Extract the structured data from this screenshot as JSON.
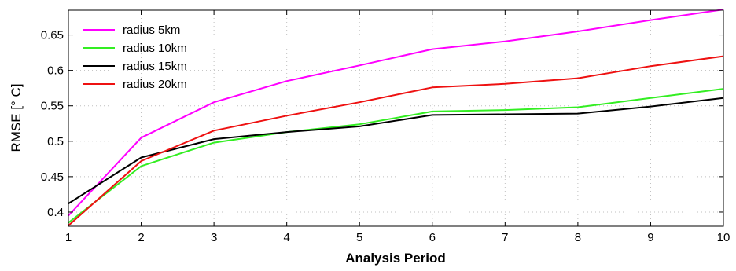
{
  "chart_data": {
    "type": "line",
    "title": "",
    "xlabel": "Analysis Period",
    "ylabel": "RMSE [° C]",
    "xlim": [
      1,
      10
    ],
    "ylim": [
      0.38,
      0.685
    ],
    "x_ticks": [
      1,
      2,
      3,
      4,
      5,
      6,
      7,
      8,
      9,
      10
    ],
    "y_ticks": [
      0.4,
      0.45,
      0.5,
      0.55,
      0.6,
      0.65
    ],
    "y_tick_labels": [
      "0.4",
      "0.45",
      "0.5",
      "0.55",
      "0.6",
      "0.65"
    ],
    "grid": true,
    "legend_position": "top-left",
    "x": [
      1,
      2,
      3,
      4,
      5,
      6,
      7,
      8,
      9,
      10
    ],
    "series": [
      {
        "name": "radius 5km",
        "color": "#ff00ff",
        "values": [
          0.395,
          0.505,
          0.555,
          0.585,
          0.607,
          0.63,
          0.641,
          0.655,
          0.671,
          0.686
        ]
      },
      {
        "name": "radius 10km",
        "color": "#33ee22",
        "values": [
          0.385,
          0.465,
          0.498,
          0.513,
          0.524,
          0.542,
          0.544,
          0.548,
          0.561,
          0.574
        ]
      },
      {
        "name": "radius 15km",
        "color": "#000000",
        "values": [
          0.412,
          0.477,
          0.503,
          0.513,
          0.521,
          0.537,
          0.538,
          0.539,
          0.549,
          0.561
        ]
      },
      {
        "name": "radius 20km",
        "color": "#ee1111",
        "values": [
          0.381,
          0.472,
          0.515,
          0.536,
          0.555,
          0.576,
          0.581,
          0.589,
          0.606,
          0.62
        ]
      }
    ]
  }
}
